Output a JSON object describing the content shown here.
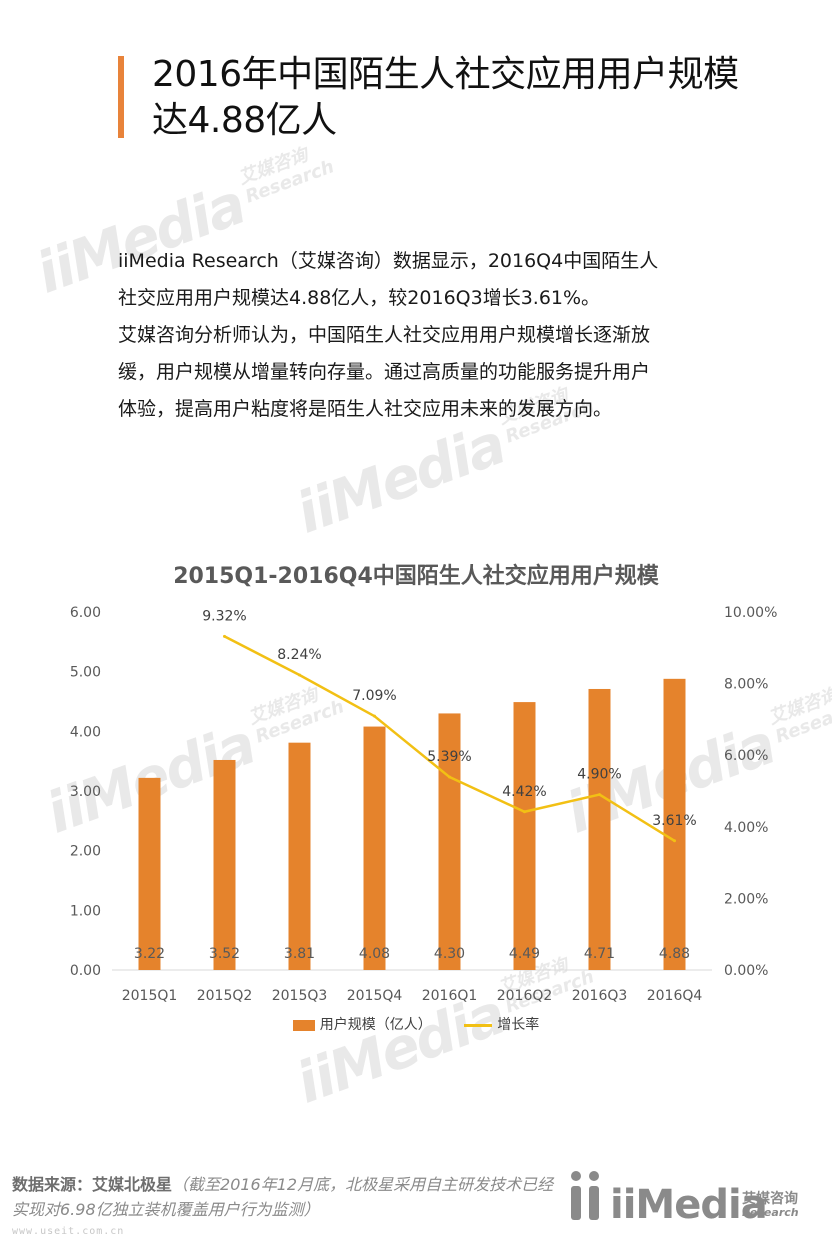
{
  "header": {
    "title_line1": "2016年中国陌生人社交应用用户规模",
    "title_line2": "达4.88亿人"
  },
  "body": {
    "lines": [
      "iiMedia Research（艾媒咨询）数据显示，2016Q4中国陌生人",
      "社交应用用户规模达4.88亿人，较2016Q3增长3.61%。",
      "艾媒咨询分析师认为，中国陌生人社交应用用户规模增长逐渐放",
      "缓，用户规模从增量转向存量。通过高质量的功能服务提升用户",
      "体验，提高用户粘度将是陌生人社交应用未来的发展方向。"
    ]
  },
  "watermark": {
    "word": "iiMedia",
    "cn": "艾媒咨询",
    "en": "Research"
  },
  "chart_data": {
    "type": "bar",
    "title": "2015Q1-2016Q4中国陌生人社交应用用户规模",
    "categories": [
      "2015Q1",
      "2015Q2",
      "2015Q3",
      "2015Q4",
      "2016Q1",
      "2016Q2",
      "2016Q3",
      "2016Q4"
    ],
    "series": [
      {
        "name": "用户规模（亿人）",
        "type": "bar",
        "axis": "left",
        "values": [
          3.22,
          3.52,
          3.81,
          4.08,
          4.3,
          4.49,
          4.71,
          4.88
        ],
        "labels": [
          "3.22",
          "3.52",
          "3.81",
          "4.08",
          "4.30",
          "4.49",
          "4.71",
          "4.88"
        ],
        "color": "#E5832C"
      },
      {
        "name": "增长率",
        "type": "line",
        "axis": "right",
        "x": [
          "2015Q2",
          "2015Q3",
          "2015Q4",
          "2016Q1",
          "2016Q2",
          "2016Q3",
          "2016Q4"
        ],
        "values": [
          9.32,
          8.24,
          7.09,
          5.39,
          4.42,
          4.9,
          3.61
        ],
        "labels": [
          "9.32%",
          "8.24%",
          "7.09%",
          "5.39%",
          "4.42%",
          "4.90%",
          "3.61%"
        ],
        "color": "#F2C014"
      }
    ],
    "y_left": {
      "lim": [
        0,
        6
      ],
      "ticks": [
        "0.00",
        "1.00",
        "2.00",
        "3.00",
        "4.00",
        "5.00",
        "6.00"
      ]
    },
    "y_right": {
      "lim": [
        0,
        10
      ],
      "ticks": [
        "0.00%",
        "2.00%",
        "4.00%",
        "6.00%",
        "8.00%",
        "10.00%"
      ]
    },
    "grid": false,
    "legend_position": "bottom"
  },
  "footer": {
    "source_label": "数据来源：艾媒北极星",
    "source_note": "（截至2016年12月底，北极星采用自主研发技术已经实现对6.98亿独立装机覆盖用户行为监测）",
    "url": "www.useit.com.cn",
    "logo_word": "iiMedia",
    "logo_cn": "艾媒咨询",
    "logo_en": "Research"
  },
  "colors": {
    "accent": "#E8833A",
    "bar": "#E5832C",
    "line": "#F2C014"
  }
}
